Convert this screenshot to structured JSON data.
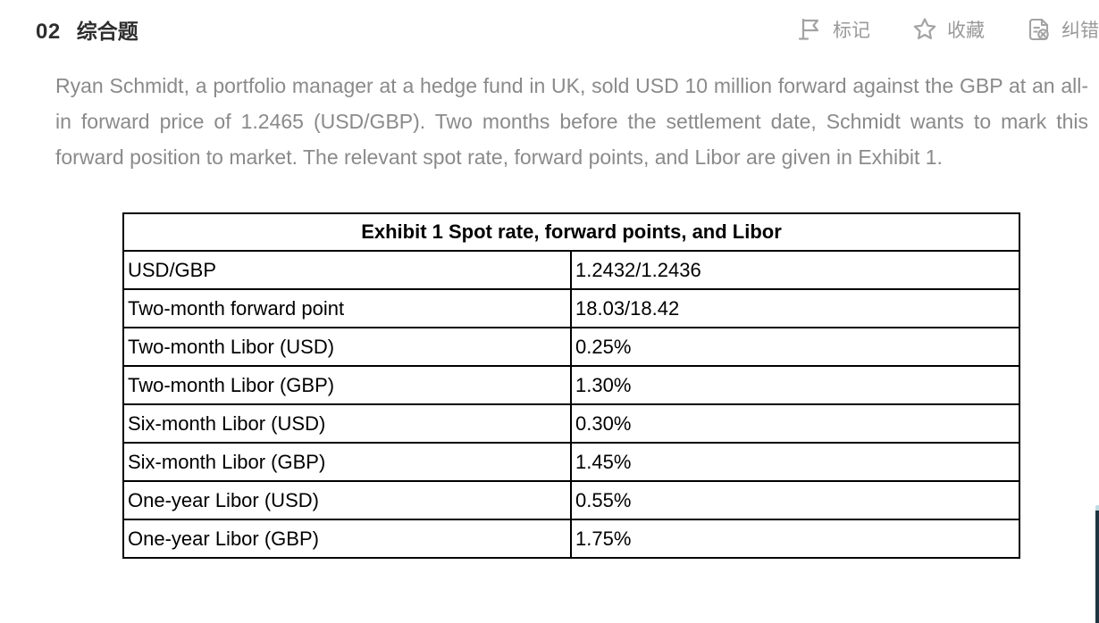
{
  "header": {
    "question_number": "02",
    "question_type": "综合题",
    "actions": [
      {
        "id": "mark",
        "label": "标记",
        "icon": "flag-icon"
      },
      {
        "id": "favorite",
        "label": "收藏",
        "icon": "star-icon"
      },
      {
        "id": "report-error",
        "label": "纠错",
        "icon": "document-error-icon"
      }
    ]
  },
  "question": {
    "stem": "Ryan Schmidt, a portfolio manager at a hedge fund in UK, sold USD 10 million forward against the GBP at an all-in forward price of 1.2465 (USD/GBP). Two months before the settlement date, Schmidt wants to mark this forward position to market. The relevant spot rate, forward points, and Libor are given in Exhibit 1."
  },
  "exhibit_table": {
    "title": "Exhibit 1 Spot rate, forward points, and Libor",
    "rows": [
      {
        "label": "USD/GBP",
        "value": "1.2432/1.2436"
      },
      {
        "label": "Two-month forward point",
        "value": "18.03/18.42"
      },
      {
        "label": "Two-month Libor (USD)",
        "value": "0.25%"
      },
      {
        "label": "Two-month Libor (GBP)",
        "value": "1.30%"
      },
      {
        "label": "Six-month Libor (USD)",
        "value": "0.30%"
      },
      {
        "label": "Six-month Libor (GBP)",
        "value": "1.45%"
      },
      {
        "label": "One-year Libor (USD)",
        "value": "0.55%"
      },
      {
        "label": "One-year Libor (GBP)",
        "value": "1.75%"
      }
    ]
  },
  "colors": {
    "heading_text": "#2e2e2e",
    "body_text": "#8a8a8a",
    "action_text": "#999999",
    "icon_stroke": "#a3a3a3",
    "table_border": "#000000",
    "table_text": "#000000",
    "right_strip": "#1c3540"
  }
}
